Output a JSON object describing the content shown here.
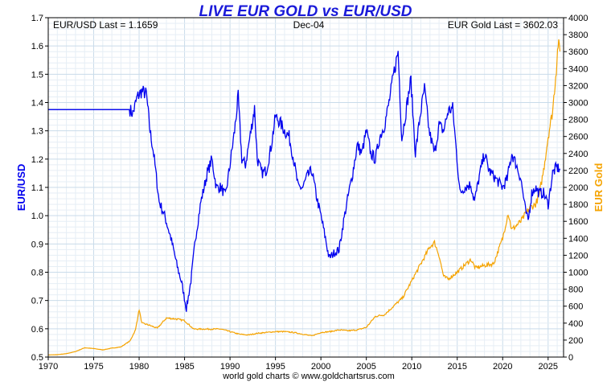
{
  "chart_data": {
    "type": "line",
    "title": "LIVE EUR GOLD vs EUR/USD",
    "header_left": "EUR/USD Last = 1.1659",
    "header_center": "Dec-04",
    "header_right": "EUR Gold Last = 3602.03",
    "footer": "world gold charts © www.goldchartsrus.com",
    "xlim": [
      1970,
      2026.7
    ],
    "x_ticks": [
      "1970",
      "1975",
      "1980",
      "1985",
      "1990",
      "1995",
      "2000",
      "2005",
      "2010",
      "2015",
      "2020",
      "2025"
    ],
    "left_axis": {
      "label": "EUR/USD",
      "ylim": [
        0.5,
        1.7
      ],
      "ticks": [
        "0.5",
        "0.6",
        "0.7",
        "0.8",
        "0.9",
        "1.0",
        "1.1",
        "1.2",
        "1.3",
        "1.4",
        "1.5",
        "1.6",
        "1.7"
      ]
    },
    "right_axis": {
      "label": "EUR Gold",
      "ylim": [
        0,
        4000
      ],
      "ticks": [
        "0",
        "200",
        "400",
        "600",
        "800",
        "1000",
        "1200",
        "1400",
        "1600",
        "1800",
        "2000",
        "2200",
        "2400",
        "2600",
        "2800",
        "3000",
        "3200",
        "3400",
        "3600",
        "3800",
        "4000"
      ]
    },
    "series": [
      {
        "name": "EUR/USD",
        "axis": "left",
        "color": "#0000ee",
        "points": [
          [
            1970,
            1.375
          ],
          [
            1979.0,
            1.375
          ],
          [
            1979.3,
            1.36
          ],
          [
            1979.8,
            1.42
          ],
          [
            1980.3,
            1.44
          ],
          [
            1980.8,
            1.43
          ],
          [
            1981.2,
            1.3
          ],
          [
            1981.6,
            1.22
          ],
          [
            1982.2,
            1.05
          ],
          [
            1982.8,
            1.0
          ],
          [
            1983.5,
            0.92
          ],
          [
            1984.2,
            0.82
          ],
          [
            1984.7,
            0.76
          ],
          [
            1985.2,
            0.67
          ],
          [
            1985.7,
            0.77
          ],
          [
            1986.2,
            0.92
          ],
          [
            1986.8,
            1.05
          ],
          [
            1987.5,
            1.15
          ],
          [
            1988.0,
            1.2
          ],
          [
            1988.5,
            1.1
          ],
          [
            1989.0,
            1.1
          ],
          [
            1989.5,
            1.07
          ],
          [
            1990.0,
            1.18
          ],
          [
            1990.5,
            1.3
          ],
          [
            1990.9,
            1.42
          ],
          [
            1991.3,
            1.2
          ],
          [
            1991.7,
            1.18
          ],
          [
            1992.3,
            1.3
          ],
          [
            1992.7,
            1.38
          ],
          [
            1993.0,
            1.2
          ],
          [
            1993.5,
            1.15
          ],
          [
            1994.0,
            1.16
          ],
          [
            1994.5,
            1.24
          ],
          [
            1995.0,
            1.35
          ],
          [
            1995.5,
            1.33
          ],
          [
            1996.0,
            1.3
          ],
          [
            1996.5,
            1.28
          ],
          [
            1997.0,
            1.2
          ],
          [
            1997.5,
            1.1
          ],
          [
            1998.0,
            1.1
          ],
          [
            1998.5,
            1.14
          ],
          [
            1999.0,
            1.16
          ],
          [
            1999.5,
            1.07
          ],
          [
            2000.0,
            1.0
          ],
          [
            2000.5,
            0.92
          ],
          [
            2000.9,
            0.85
          ],
          [
            2001.5,
            0.87
          ],
          [
            2002.0,
            0.88
          ],
          [
            2002.5,
            0.98
          ],
          [
            2003.0,
            1.07
          ],
          [
            2003.5,
            1.15
          ],
          [
            2004.0,
            1.25
          ],
          [
            2004.5,
            1.22
          ],
          [
            2005.0,
            1.3
          ],
          [
            2005.5,
            1.22
          ],
          [
            2006.0,
            1.2
          ],
          [
            2006.5,
            1.28
          ],
          [
            2007.0,
            1.32
          ],
          [
            2007.5,
            1.4
          ],
          [
            2008.0,
            1.5
          ],
          [
            2008.5,
            1.58
          ],
          [
            2008.9,
            1.27
          ],
          [
            2009.5,
            1.4
          ],
          [
            2009.9,
            1.48
          ],
          [
            2010.4,
            1.22
          ],
          [
            2010.9,
            1.35
          ],
          [
            2011.4,
            1.45
          ],
          [
            2011.9,
            1.3
          ],
          [
            2012.5,
            1.22
          ],
          [
            2013.0,
            1.32
          ],
          [
            2013.5,
            1.3
          ],
          [
            2014.0,
            1.37
          ],
          [
            2014.5,
            1.38
          ],
          [
            2014.9,
            1.23
          ],
          [
            2015.3,
            1.08
          ],
          [
            2015.8,
            1.1
          ],
          [
            2016.5,
            1.11
          ],
          [
            2016.9,
            1.05
          ],
          [
            2017.5,
            1.15
          ],
          [
            2018.0,
            1.22
          ],
          [
            2018.5,
            1.16
          ],
          [
            2019.0,
            1.14
          ],
          [
            2019.5,
            1.12
          ],
          [
            2020.0,
            1.1
          ],
          [
            2020.5,
            1.13
          ],
          [
            2021.0,
            1.22
          ],
          [
            2021.5,
            1.18
          ],
          [
            2022.0,
            1.13
          ],
          [
            2022.5,
            1.02
          ],
          [
            2022.8,
            0.98
          ],
          [
            2023.2,
            1.08
          ],
          [
            2023.6,
            1.1
          ],
          [
            2024.0,
            1.08
          ],
          [
            2024.5,
            1.08
          ],
          [
            2025.0,
            1.04
          ],
          [
            2025.5,
            1.15
          ],
          [
            2025.9,
            1.17
          ],
          [
            2026.3,
            1.1659
          ]
        ]
      },
      {
        "name": "EUR Gold",
        "axis": "right",
        "color": "#f5a300",
        "points": [
          [
            1970,
            25
          ],
          [
            1971,
            28
          ],
          [
            1972,
            40
          ],
          [
            1973,
            65
          ],
          [
            1974,
            110
          ],
          [
            1975,
            100
          ],
          [
            1976,
            85
          ],
          [
            1977,
            105
          ],
          [
            1978,
            120
          ],
          [
            1979,
            190
          ],
          [
            1979.6,
            320
          ],
          [
            1980.0,
            560
          ],
          [
            1980.3,
            400
          ],
          [
            1981.0,
            380
          ],
          [
            1982.0,
            340
          ],
          [
            1983.0,
            460
          ],
          [
            1984.0,
            450
          ],
          [
            1985.0,
            430
          ],
          [
            1986.0,
            330
          ],
          [
            1987.0,
            330
          ],
          [
            1988.0,
            330
          ],
          [
            1989.0,
            330
          ],
          [
            1990.0,
            300
          ],
          [
            1991.0,
            270
          ],
          [
            1992.0,
            260
          ],
          [
            1993.0,
            280
          ],
          [
            1994.0,
            290
          ],
          [
            1995.0,
            300
          ],
          [
            1996.0,
            300
          ],
          [
            1997.0,
            290
          ],
          [
            1998.0,
            270
          ],
          [
            1999.0,
            250
          ],
          [
            2000.0,
            290
          ],
          [
            2001.0,
            300
          ],
          [
            2002.0,
            320
          ],
          [
            2003.0,
            310
          ],
          [
            2004.0,
            320
          ],
          [
            2005.0,
            350
          ],
          [
            2006.0,
            480
          ],
          [
            2007.0,
            500
          ],
          [
            2008.0,
            600
          ],
          [
            2009.0,
            700
          ],
          [
            2010.0,
            900
          ],
          [
            2011.0,
            1100
          ],
          [
            2012.0,
            1300
          ],
          [
            2012.5,
            1350
          ],
          [
            2013.0,
            1200
          ],
          [
            2013.5,
            950
          ],
          [
            2014.0,
            920
          ],
          [
            2015.0,
            1000
          ],
          [
            2016.0,
            1100
          ],
          [
            2016.5,
            1150
          ],
          [
            2017.0,
            1050
          ],
          [
            2018.0,
            1080
          ],
          [
            2019.0,
            1100
          ],
          [
            2019.5,
            1250
          ],
          [
            2020.0,
            1400
          ],
          [
            2020.6,
            1700
          ],
          [
            2021.0,
            1500
          ],
          [
            2022.0,
            1600
          ],
          [
            2022.6,
            1700
          ],
          [
            2023.0,
            1760
          ],
          [
            2023.6,
            1800
          ],
          [
            2024.0,
            1900
          ],
          [
            2024.5,
            2200
          ],
          [
            2025.0,
            2600
          ],
          [
            2025.5,
            2900
          ],
          [
            2025.9,
            3400
          ],
          [
            2026.1,
            3700
          ],
          [
            2026.3,
            3602.03
          ]
        ]
      }
    ]
  }
}
